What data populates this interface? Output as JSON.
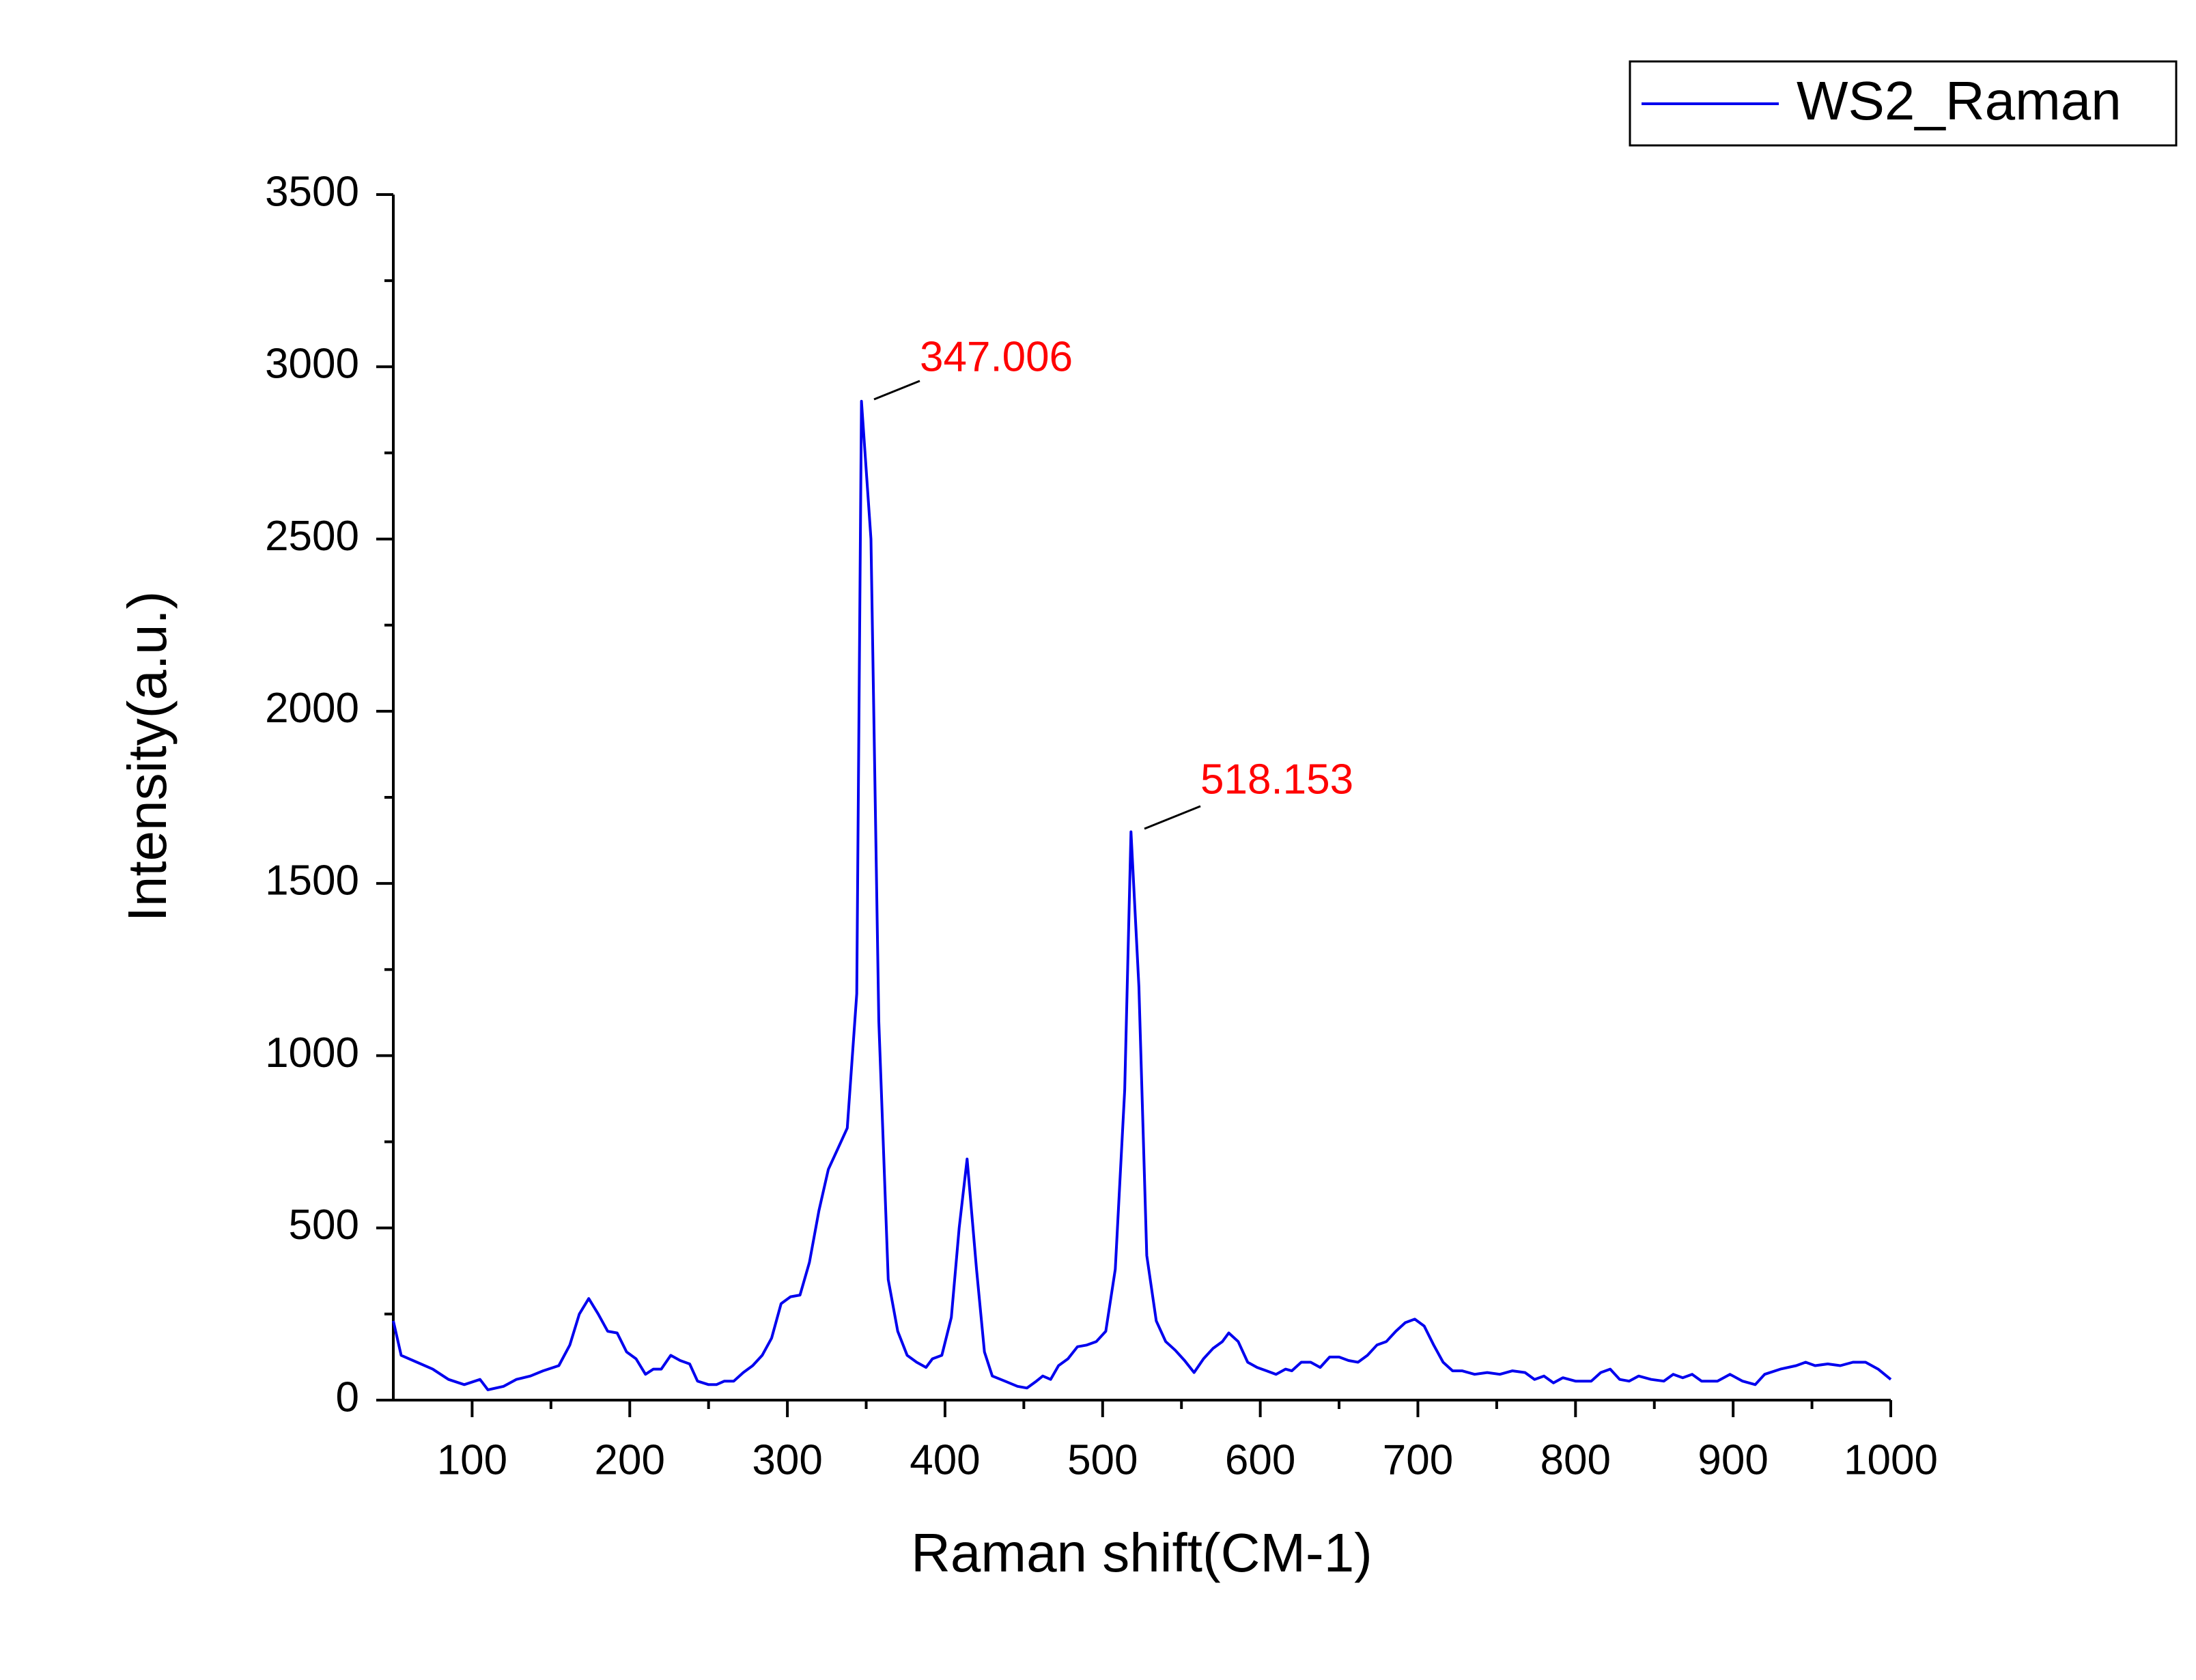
{
  "chart_data": {
    "type": "line",
    "xlabel": "Raman shift(CM-1)",
    "ylabel": "Intensity(a.u.)",
    "annotations": [
      "347.006",
      "518.153"
    ],
    "xlim": [
      50,
      1000
    ],
    "ylim": [
      0,
      3500
    ],
    "xticks": [
      100,
      200,
      300,
      400,
      500,
      600,
      700,
      800,
      900,
      1000
    ],
    "yticks": [
      0,
      500,
      1000,
      1500,
      2000,
      2500,
      3000,
      3500
    ],
    "legend": "upper right",
    "x": [
      50,
      55,
      65,
      75,
      85,
      95,
      105,
      110,
      120,
      128,
      137,
      145,
      155,
      162,
      168,
      174,
      180,
      186,
      192,
      198,
      204,
      210,
      215,
      220,
      226,
      232,
      238,
      243,
      250,
      255,
      260,
      266,
      272,
      278,
      284,
      290,
      296,
      302,
      308,
      314,
      320,
      326,
      332,
      338,
      344,
      347,
      353,
      358,
      364,
      370,
      376,
      382,
      388,
      392,
      398,
      404,
      409,
      414,
      420,
      425,
      430,
      438,
      446,
      452,
      458,
      462,
      467,
      472,
      478,
      484,
      490,
      496,
      502,
      508,
      514,
      518,
      523,
      528,
      534,
      540,
      546,
      552,
      558,
      564,
      570,
      576,
      580,
      586,
      592,
      598,
      604,
      610,
      616,
      620,
      626,
      632,
      638,
      644,
      650,
      656,
      662,
      668,
      674,
      680,
      686,
      692,
      698,
      704,
      710,
      716,
      722,
      728,
      736,
      744,
      752,
      760,
      768,
      774,
      780,
      786,
      792,
      800,
      810,
      816,
      822,
      828,
      834,
      840,
      848,
      856,
      862,
      868,
      874,
      880,
      890,
      898,
      906,
      914,
      920,
      930,
      940,
      946,
      952,
      960,
      968,
      976,
      984,
      992,
      1000
    ],
    "series": [
      {
        "name": "WS2_Raman",
        "color": "#0000ee",
        "values": [
          230,
          130,
          110,
          90,
          60,
          45,
          60,
          30,
          40,
          60,
          70,
          85,
          100,
          160,
          250,
          295,
          250,
          200,
          195,
          140,
          120,
          75,
          90,
          90,
          130,
          115,
          105,
          55,
          45,
          45,
          55,
          55,
          80,
          100,
          130,
          180,
          280,
          300,
          305,
          400,
          550,
          670,
          730,
          790,
          1180,
          2900,
          2500,
          1100,
          350,
          200,
          130,
          110,
          95,
          120,
          130,
          240,
          500,
          700,
          380,
          140,
          70,
          55,
          40,
          35,
          55,
          70,
          60,
          100,
          120,
          155,
          160,
          170,
          200,
          380,
          900,
          1650,
          1200,
          420,
          230,
          170,
          145,
          115,
          80,
          120,
          150,
          170,
          195,
          170,
          110,
          95,
          85,
          75,
          90,
          85,
          110,
          110,
          95,
          125,
          125,
          115,
          110,
          130,
          160,
          170,
          200,
          225,
          235,
          215,
          160,
          110,
          85,
          85,
          75,
          80,
          75,
          85,
          80,
          60,
          70,
          50,
          65,
          55,
          55,
          80,
          90,
          60,
          55,
          70,
          60,
          55,
          75,
          65,
          75,
          55,
          55,
          75,
          55,
          45,
          75,
          90,
          100,
          110,
          100,
          105,
          100,
          110,
          110,
          90,
          60
        ]
      }
    ]
  }
}
